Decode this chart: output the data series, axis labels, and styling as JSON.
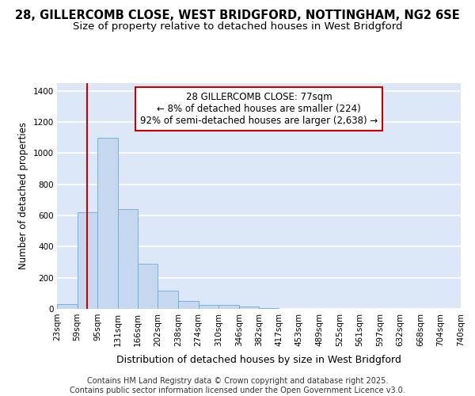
{
  "title1": "28, GILLERCOMB CLOSE, WEST BRIDGFORD, NOTTINGHAM, NG2 6SE",
  "title2": "Size of property relative to detached houses in West Bridgford",
  "xlabel": "Distribution of detached houses by size in West Bridgford",
  "ylabel": "Number of detached properties",
  "bin_edges": [
    23,
    59,
    95,
    131,
    166,
    202,
    238,
    274,
    310,
    346,
    382,
    417,
    453,
    489,
    525,
    561,
    597,
    632,
    668,
    704,
    740
  ],
  "counts": [
    30,
    620,
    1100,
    640,
    290,
    115,
    50,
    25,
    25,
    15,
    5,
    2,
    0,
    0,
    0,
    0,
    0,
    0,
    0,
    0
  ],
  "bar_color": "#c5d8f0",
  "bar_edge_color": "#6aaad4",
  "property_size": 77,
  "annotation_title": "28 GILLERCOMB CLOSE: 77sqm",
  "annotation_line1": "← 8% of detached houses are smaller (224)",
  "annotation_line2": "92% of semi-detached houses are larger (2,638) →",
  "vline_color": "#cc0000",
  "vline_x": 77,
  "ylim": [
    0,
    1450
  ],
  "yticks": [
    0,
    200,
    400,
    600,
    800,
    1000,
    1200,
    1400
  ],
  "background_color": "#dce8f8",
  "grid_color": "#ffffff",
  "fig_background": "#ffffff",
  "footer1": "Contains HM Land Registry data © Crown copyright and database right 2025.",
  "footer2": "Contains public sector information licensed under the Open Government Licence v3.0.",
  "title1_fontsize": 10.5,
  "title2_fontsize": 9.5,
  "xlabel_fontsize": 9,
  "ylabel_fontsize": 8.5,
  "tick_fontsize": 7.5,
  "annotation_fontsize": 8.5,
  "footer_fontsize": 7
}
